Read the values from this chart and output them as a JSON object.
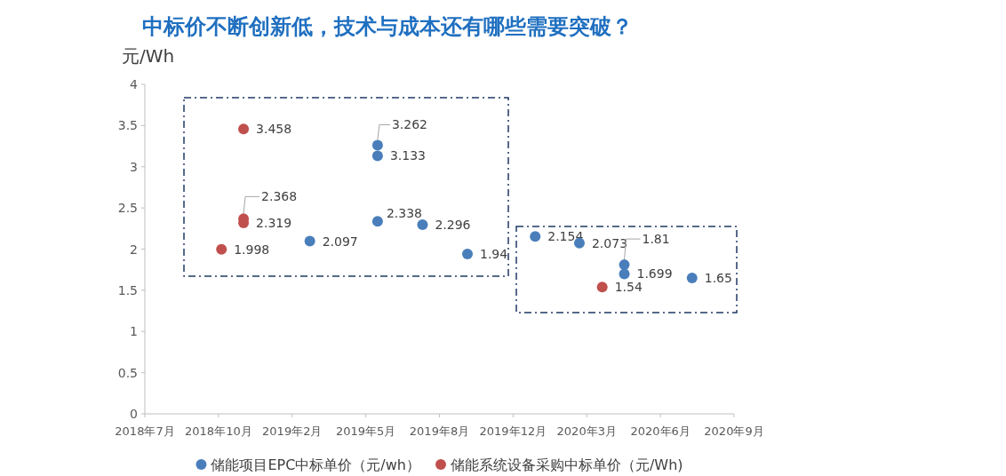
{
  "chart_data": {
    "type": "scatter",
    "title": "中标价不断创新低，技术与成本还有哪些需要突破？",
    "ylabel": "元/Wh",
    "xlim": [
      "2018-07-20",
      "2020-09-27"
    ],
    "xticks": [
      {
        "value": "2018-07-20",
        "label": "2018年7月"
      },
      {
        "value": "2018-10-28",
        "label": "2018年10月"
      },
      {
        "value": "2019-02-05",
        "label": "2019年2月"
      },
      {
        "value": "2019-05-16",
        "label": "2019年5月"
      },
      {
        "value": "2019-08-24",
        "label": "2019年8月"
      },
      {
        "value": "2019-12-02",
        "label": "2019年12月"
      },
      {
        "value": "2020-03-11",
        "label": "2020年3月"
      },
      {
        "value": "2020-06-19",
        "label": "2020年6月"
      },
      {
        "value": "2020-09-27",
        "label": "2020年9月"
      }
    ],
    "ylim": [
      0,
      4
    ],
    "yticks": [
      0,
      0.5,
      1,
      1.5,
      2,
      2.5,
      3,
      3.5,
      4
    ],
    "grid": false,
    "legend": "bottom",
    "marker": "circle",
    "data_labels": true,
    "series": [
      {
        "name": "储能项目EPC中标单价（元/wh）",
        "color": "#4a7ebb",
        "x": [
          "2019-03-01",
          "2019-06-01",
          "2019-06-01",
          "2019-06-01",
          "2019-08-01",
          "2019-10-01",
          "2020-01-01",
          "2020-03-01",
          "2020-05-01",
          "2020-05-01",
          "2020-08-01"
        ],
        "values": [
          2.097,
          3.262,
          3.133,
          2.338,
          2.296,
          1.94,
          2.154,
          2.073,
          1.81,
          1.699,
          1.65
        ]
      },
      {
        "name": "储能系统设备采购中标单价（元/Wh)",
        "color": "#c0504d",
        "x": [
          "2018-12-01",
          "2018-12-01",
          "2018-12-01",
          "2018-11-01",
          "2020-04-01"
        ],
        "values": [
          3.458,
          2.368,
          2.319,
          1.998,
          1.54
        ]
      }
    ]
  }
}
